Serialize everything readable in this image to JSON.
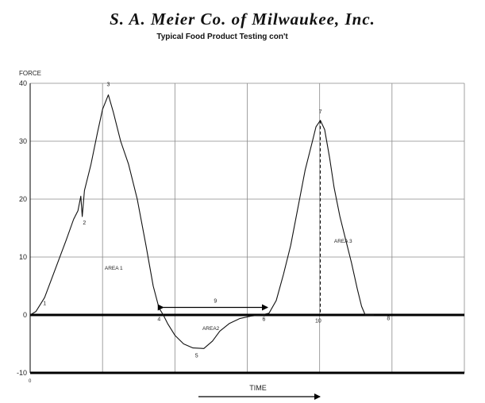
{
  "header": {
    "company": "S. A. Meier Co. of Milwaukee, Inc.",
    "subtitle": "Typical Food Product Testing con't"
  },
  "chart_data": {
    "type": "line",
    "title": "",
    "ylabel": "FORCE",
    "xlabel": "TIME",
    "xlim": [
      0,
      600
    ],
    "ylim": [
      -10,
      40
    ],
    "yticks": [
      {
        "value": 40,
        "label": "40"
      },
      {
        "value": 30,
        "label": "30"
      },
      {
        "value": 20,
        "label": "20"
      },
      {
        "value": 10,
        "label": "10"
      },
      {
        "value": 0,
        "label": "0"
      },
      {
        "value": -10,
        "label": "-10"
      }
    ],
    "x_origin_label": "0",
    "grid": true,
    "series": [
      {
        "points": [
          [
            0,
            0
          ],
          [
            8,
            0.6
          ],
          [
            20,
            3
          ],
          [
            35,
            8
          ],
          [
            50,
            13
          ],
          [
            60,
            16.5
          ],
          [
            66,
            18
          ],
          [
            70,
            20.5
          ],
          [
            72,
            17
          ],
          [
            75,
            21.5
          ],
          [
            84,
            26
          ],
          [
            93,
            31.5
          ],
          [
            100,
            35.5
          ],
          [
            108,
            38
          ],
          [
            115,
            35
          ],
          [
            125,
            30
          ],
          [
            136,
            26
          ],
          [
            148,
            20
          ],
          [
            160,
            12
          ],
          [
            170,
            5
          ],
          [
            178,
            1.2
          ],
          [
            184,
            0
          ],
          [
            190,
            -1.5
          ],
          [
            200,
            -3.5
          ],
          [
            212,
            -5
          ],
          [
            225,
            -5.7
          ],
          [
            240,
            -5.8
          ],
          [
            252,
            -4.5
          ],
          [
            262,
            -2.8
          ],
          [
            275,
            -1.5
          ],
          [
            290,
            -0.6
          ],
          [
            305,
            -0.2
          ],
          [
            320,
            0
          ],
          [
            330,
            0.3
          ],
          [
            340,
            2.5
          ],
          [
            350,
            7
          ],
          [
            360,
            12
          ],
          [
            370,
            18.5
          ],
          [
            380,
            25
          ],
          [
            390,
            30
          ],
          [
            395,
            32.5
          ],
          [
            401,
            33.6
          ],
          [
            407,
            32
          ],
          [
            414,
            27
          ],
          [
            420,
            22
          ],
          [
            428,
            17
          ],
          [
            436,
            13
          ],
          [
            444,
            9
          ],
          [
            452,
            4.5
          ],
          [
            458,
            1.5
          ],
          [
            463,
            0
          ],
          [
            475,
            0
          ]
        ]
      }
    ],
    "area_boundary": {
      "x": 401,
      "from": 0,
      "to": 33.6
    },
    "span_arrow": {
      "label": "9",
      "x1": 184,
      "x2": 328,
      "y": 1.3
    },
    "point_labels": [
      {
        "label": "1",
        "x": 20,
        "y": 1.7
      },
      {
        "label": "2",
        "x": 75,
        "y": 15.6
      },
      {
        "label": "3",
        "x": 108,
        "y": 39.5
      },
      {
        "label": "4",
        "x": 178,
        "y": -1
      },
      {
        "label": "5",
        "x": 230,
        "y": -7.3
      },
      {
        "label": "6",
        "x": 323,
        "y": -1
      },
      {
        "label": "7",
        "x": 401,
        "y": 34.8
      },
      {
        "label": "10",
        "x": 398,
        "y": -1.3
      },
      {
        "label": "8",
        "x": 495,
        "y": -0.9
      }
    ],
    "area_labels": [
      {
        "label": "AREA 1",
        "x": 103,
        "y": 7.8
      },
      {
        "label": "AREA2",
        "x": 238,
        "y": -2.6
      },
      {
        "label": "AREA 3",
        "x": 420,
        "y": 12.5
      }
    ]
  }
}
